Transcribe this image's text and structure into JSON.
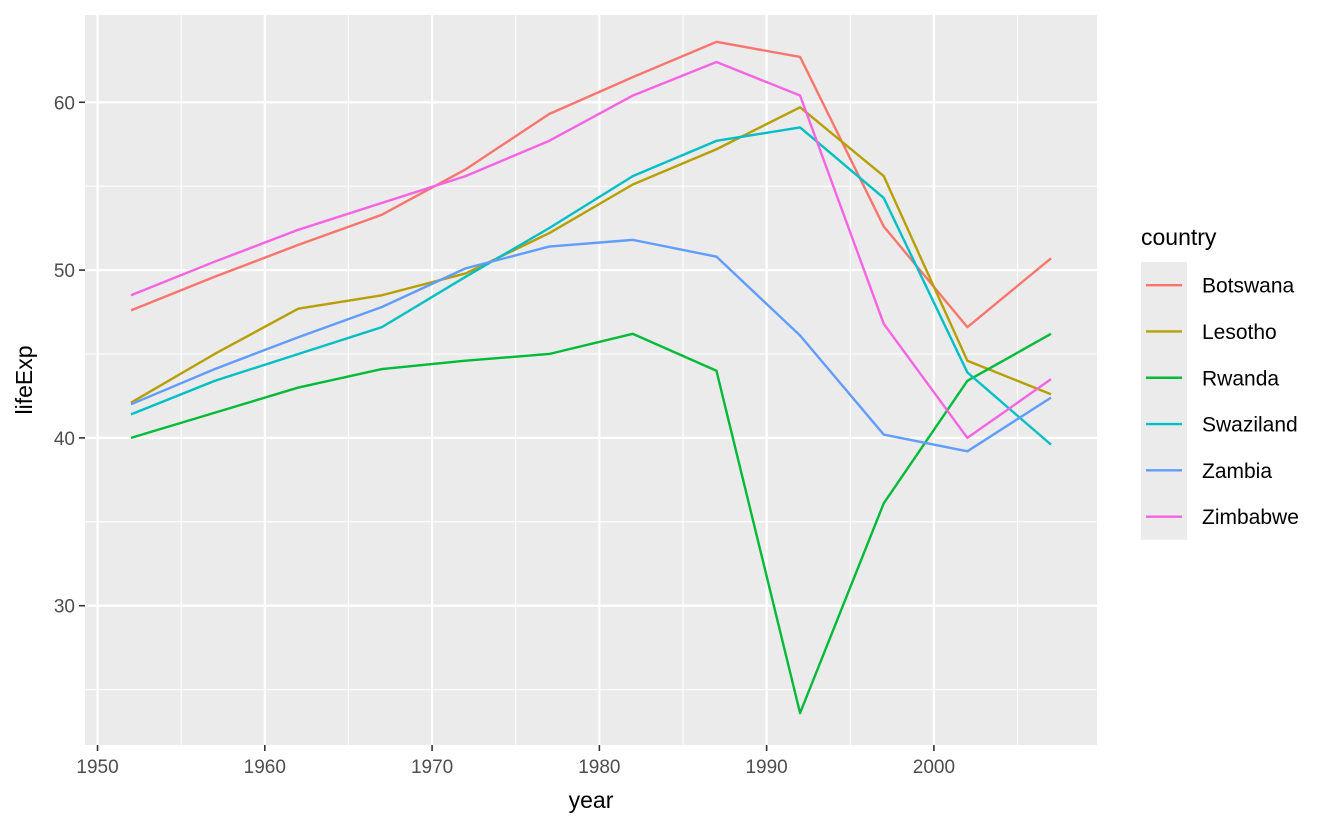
{
  "chart_data": {
    "type": "line",
    "title": "",
    "xlabel": "year",
    "ylabel": "lifeExp",
    "xlim": [
      1949.25,
      2009.75
    ],
    "ylim": [
      21.7,
      65.2
    ],
    "x_ticks": [
      1950,
      1960,
      1970,
      1980,
      1990,
      2000
    ],
    "y_ticks": [
      30,
      40,
      50,
      60
    ],
    "grid": true,
    "legend": {
      "title": "country",
      "position": "right"
    },
    "x": [
      1952,
      1957,
      1962,
      1967,
      1972,
      1977,
      1982,
      1987,
      1992,
      1997,
      2002,
      2007
    ],
    "series": [
      {
        "name": "Botswana",
        "color": "#F8766D",
        "values": [
          47.6,
          49.6,
          51.5,
          53.3,
          56.0,
          59.3,
          61.5,
          63.6,
          62.7,
          52.6,
          46.6,
          50.7
        ]
      },
      {
        "name": "Lesotho",
        "color": "#B79F00",
        "values": [
          42.1,
          45.0,
          47.7,
          48.5,
          49.8,
          52.2,
          55.1,
          57.2,
          59.7,
          55.6,
          44.6,
          42.6
        ]
      },
      {
        "name": "Rwanda",
        "color": "#00BA38",
        "values": [
          40.0,
          41.5,
          43.0,
          44.1,
          44.6,
          45.0,
          46.2,
          44.0,
          23.6,
          36.1,
          43.4,
          46.2
        ]
      },
      {
        "name": "Swaziland",
        "color": "#00BFC4",
        "values": [
          41.4,
          43.4,
          45.0,
          46.6,
          49.6,
          52.5,
          55.6,
          57.7,
          58.5,
          54.3,
          43.9,
          39.6
        ]
      },
      {
        "name": "Zambia",
        "color": "#619CFF",
        "values": [
          42.0,
          44.1,
          46.0,
          47.8,
          50.1,
          51.4,
          51.8,
          50.8,
          46.1,
          40.2,
          39.2,
          42.4
        ]
      },
      {
        "name": "Zimbabwe",
        "color": "#F564E3",
        "values": [
          48.5,
          50.5,
          52.4,
          54.0,
          55.6,
          57.7,
          60.4,
          62.4,
          60.4,
          46.8,
          40.0,
          43.5
        ]
      }
    ]
  }
}
